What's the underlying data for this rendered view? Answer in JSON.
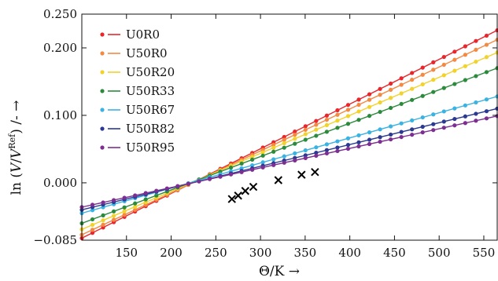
{
  "chart_data": {
    "type": "scatter",
    "xlabel": "Θ/K →",
    "ylabel_parts": [
      "ln (",
      "V",
      "/",
      "V",
      "Ref",
      ") /- →"
    ],
    "xlim": [
      100,
      565
    ],
    "ylim": [
      -0.085,
      0.25
    ],
    "xticks": [
      150,
      200,
      250,
      300,
      350,
      400,
      450,
      500,
      550
    ],
    "xtick_labels": [
      "150",
      "200",
      "250",
      "300",
      "350",
      "400",
      "450",
      "500",
      "550"
    ],
    "yticks": [
      -0.085,
      0.0,
      0.1,
      0.2,
      0.25
    ],
    "ytick_labels": [
      "−0.085",
      "0.000",
      "0.100",
      "0.200",
      "0.250"
    ],
    "grid": false,
    "legend_position": "top-left",
    "series": [
      {
        "name": "U0R0",
        "color": "#e8262b",
        "x0": 100,
        "x1": 565,
        "y0": -0.082,
        "y1": 0.226,
        "n": 40
      },
      {
        "name": "U50R0",
        "color": "#f28a43",
        "x0": 100,
        "x1": 565,
        "y0": -0.077,
        "y1": 0.212,
        "n": 40
      },
      {
        "name": "U50R20",
        "color": "#f2d22c",
        "x0": 100,
        "x1": 565,
        "y0": -0.069,
        "y1": 0.193,
        "n": 40
      },
      {
        "name": "U50R33",
        "color": "#2c8a3c",
        "x0": 100,
        "x1": 565,
        "y0": -0.06,
        "y1": 0.17,
        "n": 40
      },
      {
        "name": "U50R67",
        "color": "#3ab3e3",
        "x0": 100,
        "x1": 565,
        "y0": -0.045,
        "y1": 0.128,
        "n": 40
      },
      {
        "name": "U50R82",
        "color": "#2b3990",
        "x0": 100,
        "x1": 565,
        "y0": -0.04,
        "y1": 0.11,
        "n": 40
      },
      {
        "name": "U50R95",
        "color": "#7d2f91",
        "x0": 100,
        "x1": 565,
        "y0": -0.036,
        "y1": 0.099,
        "n": 40
      }
    ],
    "markers_x": [
      {
        "x": 268,
        "y": -0.024
      },
      {
        "x": 275,
        "y": -0.019
      },
      {
        "x": 283,
        "y": -0.012
      },
      {
        "x": 292,
        "y": -0.006
      },
      {
        "x": 320,
        "y": 0.004
      },
      {
        "x": 346,
        "y": 0.012
      },
      {
        "x": 361,
        "y": 0.016
      }
    ]
  }
}
